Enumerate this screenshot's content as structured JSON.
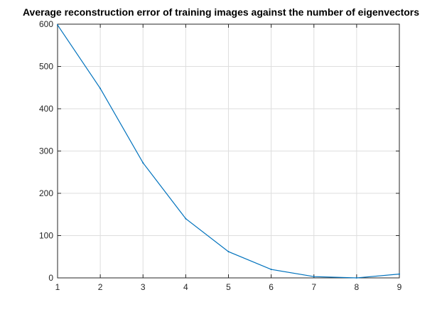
{
  "chart_data": {
    "type": "line",
    "title": "Average reconstruction error of training images against the number of eigenvectors",
    "xlabel": "",
    "ylabel": "",
    "x": [
      1,
      2,
      3,
      4,
      5,
      6,
      7,
      8,
      9
    ],
    "series": [
      {
        "values": [
          598,
          448,
          272,
          140,
          62,
          20,
          3,
          0,
          9
        ],
        "color": "#0072bd"
      }
    ],
    "xlim": [
      1,
      9
    ],
    "ylim": [
      0,
      600
    ],
    "xticks": [
      1,
      2,
      3,
      4,
      5,
      6,
      7,
      8,
      9
    ],
    "yticks": [
      0,
      100,
      200,
      300,
      400,
      500,
      600
    ],
    "grid": true,
    "legend": "none"
  }
}
